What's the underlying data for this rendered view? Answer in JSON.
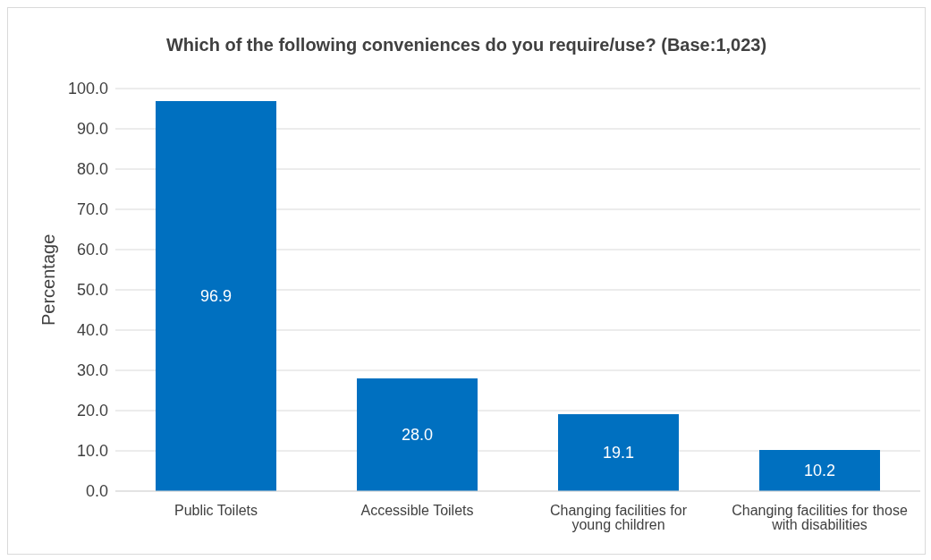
{
  "chart_data": {
    "type": "bar",
    "title": "Which of the following conveniences do you require/use? (Base:1,023)",
    "ylabel": "Percentage",
    "categories": [
      "Public Toilets",
      "Accessible Toilets",
      "Changing facilities for young children",
      "Changing facilities for those with disabilities"
    ],
    "values": [
      96.9,
      28.0,
      19.1,
      10.2
    ],
    "value_labels": [
      "96.9",
      "28.0",
      "19.1",
      "10.2"
    ],
    "color": "#0070c0",
    "ylim": [
      0,
      100
    ],
    "yticks": [
      {
        "value": 0,
        "label": "0.0"
      },
      {
        "value": 10,
        "label": "10.0"
      },
      {
        "value": 20,
        "label": "20.0"
      },
      {
        "value": 30,
        "label": "30.0"
      },
      {
        "value": 40,
        "label": "40.0"
      },
      {
        "value": 50,
        "label": "50.0"
      },
      {
        "value": 60,
        "label": "60.0"
      },
      {
        "value": 70,
        "label": "70.0"
      },
      {
        "value": 80,
        "label": "80.0"
      },
      {
        "value": 90,
        "label": "90.0"
      },
      {
        "value": 100,
        "label": "100.0"
      }
    ],
    "grid": "y",
    "legend": false
  }
}
